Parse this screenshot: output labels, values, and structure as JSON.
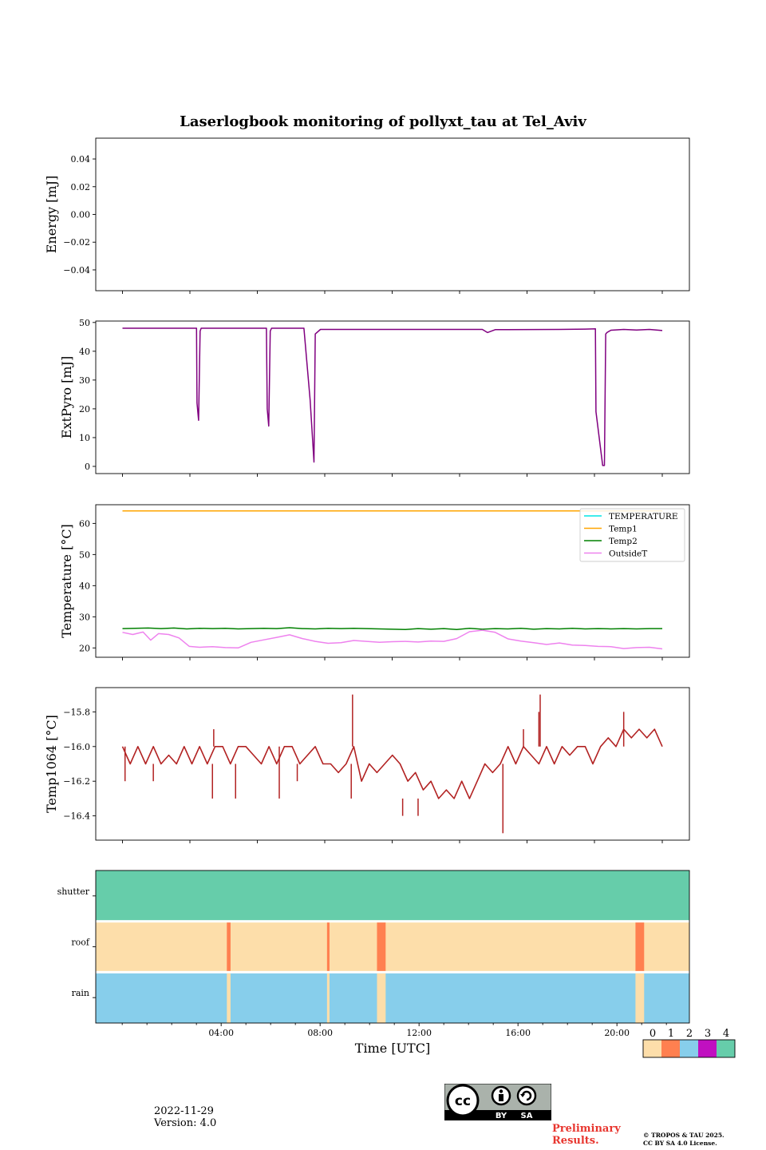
{
  "figure": {
    "title": "Laserlogbook monitoring of pollyxt_tau at Tel_Aviv",
    "xlabel": "Time [UTC]",
    "date": "2022-11-29",
    "version": "Version: 4.0",
    "preliminary": [
      "Preliminary",
      "Results."
    ],
    "copyright": [
      "© TROPOS & TAU 2025.",
      "CC BY SA 4.0 License."
    ],
    "license_badge": {
      "left": "BY",
      "right": "SA"
    }
  },
  "chart_data": [
    {
      "type": "line",
      "ylabel": "Energy [mJ]",
      "ylim": [
        -0.055,
        0.055
      ],
      "yticks": [
        0.04,
        0.02,
        0.0,
        -0.02,
        -0.04
      ],
      "ytick_labels": [
        "0.04",
        "0.02",
        "0.00",
        "−0.02",
        "−0.04"
      ],
      "series": []
    },
    {
      "type": "line",
      "ylabel": "ExtPyro [mJ]",
      "ylim": [
        -2.5,
        50.5
      ],
      "yticks": [
        0,
        10,
        20,
        30,
        40,
        50
      ],
      "ytick_labels": [
        "0",
        "10",
        "20",
        "30",
        "40",
        "50"
      ],
      "series": [
        {
          "color": "#800080",
          "x": [
            0.0,
            2.0,
            2.88,
            2.9,
            2.96,
            3.02,
            3.06,
            4.5,
            5.6,
            5.63,
            5.69,
            5.75,
            5.8,
            7.0,
            7.0,
            7.06,
            7.3,
            7.45,
            7.5,
            7.7,
            9.5,
            11.0,
            13.0,
            14.0,
            14.2,
            14.5,
            17.0,
            18.0,
            18.4,
            18.42,
            18.68,
            18.75,
            18.8,
            18.85,
            19.0,
            19.5,
            20.0,
            20.5,
            21.0
          ],
          "y": [
            48,
            48,
            48,
            22,
            16,
            47,
            48,
            48,
            48,
            20,
            14,
            47,
            48,
            48,
            48,
            48,
            23,
            1.5,
            46,
            47.6,
            47.6,
            47.6,
            47.6,
            47.6,
            46.5,
            47.5,
            47.6,
            47.7,
            47.8,
            19,
            0.3,
            0.3,
            46,
            46.5,
            47.3,
            47.6,
            47.4,
            47.6,
            47.2
          ]
        }
      ]
    },
    {
      "type": "line",
      "ylabel": "Temperature [°C]",
      "ylim": [
        17,
        66
      ],
      "yticks": [
        20,
        30,
        40,
        50,
        60
      ],
      "ytick_labels": [
        "20",
        "30",
        "40",
        "50",
        "60"
      ],
      "legend": "top-right",
      "series": [
        {
          "name": "TEMPERATURE",
          "color": "#00e5e5",
          "x": [],
          "y": []
        },
        {
          "name": "Temp1",
          "color": "#ffa500",
          "x": [
            0,
            21
          ],
          "y": [
            64,
            64
          ]
        },
        {
          "name": "Temp2",
          "color": "#008000",
          "x": [
            0,
            0.5,
            1,
            1.5,
            2,
            2.5,
            3,
            3.5,
            4,
            4.5,
            5,
            5.5,
            6,
            6.5,
            7,
            7.5,
            8,
            8.5,
            9,
            9.5,
            10,
            10.5,
            11,
            11.5,
            12,
            12.5,
            13,
            13.5,
            14,
            14.5,
            15,
            15.5,
            16,
            16.5,
            17,
            17.5,
            18,
            18.5,
            19,
            19.5,
            20,
            20.5,
            21
          ],
          "y": [
            26.2,
            26.3,
            26.4,
            26.2,
            26.4,
            26.1,
            26.3,
            26.2,
            26.3,
            26.1,
            26.2,
            26.3,
            26.2,
            26.5,
            26.2,
            26.1,
            26.3,
            26.2,
            26.3,
            26.2,
            26.1,
            26.0,
            25.9,
            26.2,
            26.0,
            26.2,
            25.9,
            26.3,
            26.0,
            26.2,
            26.1,
            26.3,
            26.0,
            26.2,
            26.1,
            26.3,
            26.1,
            26.2,
            26.1,
            26.2,
            26.1,
            26.2,
            26.2
          ]
        },
        {
          "name": "OutsideT",
          "color": "#ee82ee",
          "x": [
            0,
            0.4,
            0.8,
            1.1,
            1.4,
            1.8,
            2.2,
            2.6,
            3.0,
            3.5,
            4.0,
            4.5,
            5.0,
            5.5,
            6.0,
            6.5,
            7.0,
            7.5,
            8.0,
            8.5,
            9.0,
            9.5,
            10.0,
            10.5,
            11.0,
            11.5,
            12.0,
            12.5,
            13.0,
            13.5,
            14.0,
            14.5,
            15.0,
            15.5,
            16.0,
            16.5,
            17.0,
            17.5,
            18.0,
            18.5,
            19.0,
            19.5,
            20.0,
            20.5,
            21.0
          ],
          "y": [
            25.0,
            24.3,
            25.1,
            22.5,
            24.6,
            24.3,
            23.2,
            20.5,
            20.2,
            20.4,
            20.1,
            20.0,
            21.8,
            22.6,
            23.4,
            24.2,
            23.0,
            22.1,
            21.5,
            21.7,
            22.4,
            22.1,
            21.8,
            22.0,
            22.1,
            21.9,
            22.2,
            22.1,
            23.0,
            25.2,
            25.7,
            25.0,
            22.9,
            22.2,
            21.7,
            21.1,
            21.6,
            20.9,
            20.8,
            20.5,
            20.4,
            19.8,
            20.1,
            20.2,
            19.7
          ]
        }
      ]
    },
    {
      "type": "line",
      "ylabel": "Temp1064 [°C]",
      "ylim": [
        -16.54,
        -15.66
      ],
      "yticks": [
        -15.8,
        -16.0,
        -16.2,
        -16.4
      ],
      "ytick_labels": [
        "−15.8",
        "−16.0",
        "−16.2",
        "−16.4"
      ],
      "series": [
        {
          "color": "#b22222",
          "x": [
            0,
            0.3,
            0.6,
            0.9,
            1.2,
            1.5,
            1.8,
            2.1,
            2.4,
            2.7,
            3.0,
            3.3,
            3.6,
            3.9,
            4.2,
            4.5,
            4.8,
            5.1,
            5.4,
            5.7,
            6.0,
            6.3,
            6.6,
            6.9,
            7.2,
            7.5,
            7.8,
            8.1,
            8.4,
            8.7,
            9.0,
            9.3,
            9.6,
            9.9,
            10.2,
            10.5,
            10.8,
            11.1,
            11.4,
            11.7,
            12.0,
            12.3,
            12.6,
            12.9,
            13.2,
            13.5,
            13.8,
            14.1,
            14.4,
            14.7,
            15.0,
            15.3,
            15.6,
            15.9,
            16.2,
            16.5,
            16.8,
            17.1,
            17.4,
            17.7,
            18.0,
            18.3,
            18.6,
            18.9,
            19.2,
            19.5,
            19.8,
            20.1,
            20.4,
            20.7,
            21.0
          ],
          "y": [
            -16.0,
            -16.1,
            -16.0,
            -16.1,
            -16.0,
            -16.1,
            -16.05,
            -16.1,
            -16.0,
            -16.1,
            -16.0,
            -16.1,
            -16.0,
            -16.0,
            -16.1,
            -16.0,
            -16.0,
            -16.05,
            -16.1,
            -16.0,
            -16.1,
            -16.0,
            -16.0,
            -16.1,
            -16.05,
            -16.0,
            -16.1,
            -16.1,
            -16.15,
            -16.1,
            -16.0,
            -16.2,
            -16.1,
            -16.15,
            -16.1,
            -16.05,
            -16.1,
            -16.2,
            -16.15,
            -16.25,
            -16.2,
            -16.3,
            -16.25,
            -16.3,
            -16.2,
            -16.3,
            -16.2,
            -16.1,
            -16.15,
            -16.1,
            -16.0,
            -16.1,
            -16.0,
            -16.05,
            -16.1,
            -16.0,
            -16.1,
            -16.0,
            -16.05,
            -16.0,
            -16.0,
            -16.1,
            -16.0,
            -15.95,
            -16.0,
            -15.9,
            -15.95,
            -15.9,
            -15.95,
            -15.9,
            -16.0
          ]
        },
        {
          "color": "#b22222",
          "x": [
            0.1,
            0.1,
            1.2,
            1.2,
            3.5,
            3.5,
            3.55,
            3.55,
            4.4,
            4.4,
            6.1,
            6.1,
            6.8,
            6.8,
            8.9,
            8.9,
            8.95,
            8.95,
            10.9,
            10.9,
            11.5,
            11.5,
            14.8,
            14.8,
            15.6,
            15.6,
            16.2,
            16.2,
            16.25,
            16.25,
            19.5,
            19.5
          ],
          "y": [
            -16.0,
            -16.2,
            -16.1,
            -16.2,
            -16.1,
            -16.3,
            -16.0,
            -15.9,
            -16.1,
            -16.3,
            -16.0,
            -16.3,
            -16.1,
            -16.2,
            -16.1,
            -16.3,
            -16.0,
            -15.7,
            -16.3,
            -16.4,
            -16.3,
            -16.4,
            -16.1,
            -16.5,
            -16.0,
            -15.9,
            -16.0,
            -15.8,
            -16.0,
            -15.7,
            -16.0,
            -15.8
          ]
        }
      ]
    },
    {
      "type": "heatmap",
      "rows": [
        "shutter",
        "roof",
        "rain"
      ],
      "xticks": [
        4,
        8,
        12,
        16,
        20
      ],
      "xtick_labels": [
        "04:00",
        "08:00",
        "12:00",
        "16:00",
        "20:00"
      ],
      "xlim": [
        -1.07,
        22.93
      ],
      "segments": [
        {
          "row": "shutter",
          "start": -1.07,
          "end": 22.93,
          "value": 4
        },
        {
          "row": "roof",
          "start": -1.07,
          "end": 22.93,
          "value": 0
        },
        {
          "row": "roof",
          "start": 4.23,
          "end": 4.38,
          "value": 1
        },
        {
          "row": "roof",
          "start": 8.28,
          "end": 8.38,
          "value": 1
        },
        {
          "row": "roof",
          "start": 10.3,
          "end": 10.65,
          "value": 1
        },
        {
          "row": "roof",
          "start": 20.75,
          "end": 21.1,
          "value": 1
        },
        {
          "row": "rain",
          "start": -1.07,
          "end": 22.93,
          "value": 2
        },
        {
          "row": "rain",
          "start": 4.23,
          "end": 4.38,
          "value": 0
        },
        {
          "row": "rain",
          "start": 8.28,
          "end": 8.38,
          "value": 0
        },
        {
          "row": "rain",
          "start": 10.3,
          "end": 10.65,
          "value": 0
        },
        {
          "row": "rain",
          "start": 20.75,
          "end": 21.1,
          "value": 0
        }
      ],
      "colorbar": {
        "ticks": [
          "0",
          "1",
          "2",
          "3",
          "4"
        ],
        "colors": [
          "#fddeaa",
          "#ff8050",
          "#87ceeb",
          "#c010c0",
          "#66cdaa"
        ]
      }
    }
  ]
}
